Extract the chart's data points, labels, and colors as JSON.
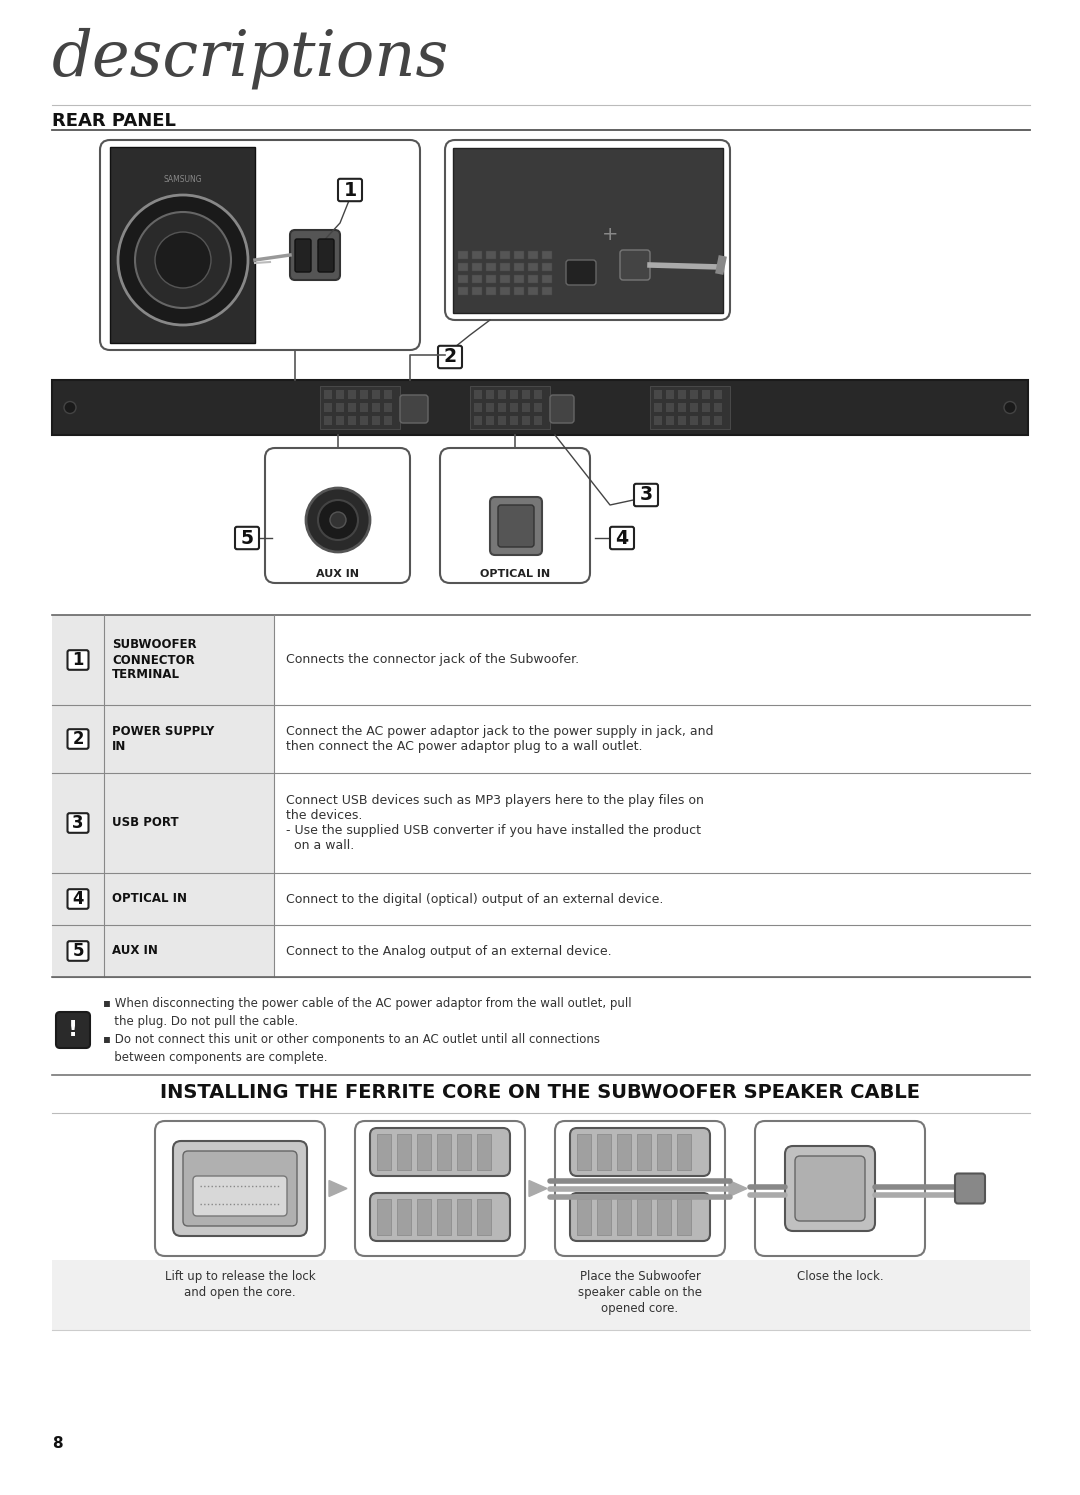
{
  "title": "descriptions",
  "section1_title": "REAR PANEL",
  "section2_title": "INSTALLING THE FERRITE CORE ON THE SUBWOOFER SPEAKER CABLE",
  "bg_color": "#ffffff",
  "table_header_bg": "#e0e0e0",
  "table_rows": [
    {
      "num": "1",
      "label": "SUBWOOFER\nCONNECTOR\nTERMINAL",
      "desc": "Connects the connector jack of the Subwoofer."
    },
    {
      "num": "2",
      "label": "POWER SUPPLY\nIN",
      "desc": "Connect the AC power adaptor jack to the power supply in jack, and\nthen connect the AC power adaptor plug to a wall outlet."
    },
    {
      "num": "3",
      "label": "USB PORT",
      "desc": "Connect USB devices such as MP3 players here to the play files on\nthe devices.\n- Use the supplied USB converter if you have installed the product\n  on a wall."
    },
    {
      "num": "4",
      "label": "OPTICAL IN",
      "desc": "Connect to the digital (optical) output of an external device."
    },
    {
      "num": "5",
      "label": "AUX IN",
      "desc": "Connect to the Analog output of an external device."
    }
  ],
  "caution_line1": "▪ When disconnecting the power cable of the AC power adaptor from the wall outlet, pull",
  "caution_line2": "   the plug. Do not pull the cable.",
  "caution_line3": "▪ Do not connect this unit or other components to an AC outlet until all connections",
  "caution_line4": "   between components are complete.",
  "ferrite_step1": "Lift up to release the lock\nand open the core.",
  "ferrite_step2": "Place the Subwoofer\nspeaker cable on the\nopened core.",
  "ferrite_step3": "Close the lock.",
  "page_number": "8"
}
